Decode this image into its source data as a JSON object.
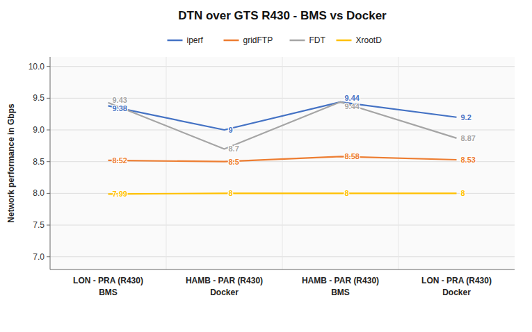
{
  "chart_data": {
    "type": "line",
    "title": "DTN over GTS R430 - BMS vs Docker",
    "ylabel": "Network performance in Gbps",
    "categories": [
      [
        "LON - PRA (R430)",
        "BMS"
      ],
      [
        "HAMB - PAR (R430)",
        "Docker"
      ],
      [
        "HAMB - PAR (R430)",
        "BMS"
      ],
      [
        "LON - PRA (R430)",
        "Docker"
      ]
    ],
    "series": [
      {
        "name": "iperf",
        "color": "#4472C4",
        "values": [
          9.38,
          9.0,
          9.44,
          9.2
        ]
      },
      {
        "name": "gridFTP",
        "color": "#ED7D31",
        "values": [
          8.52,
          8.5,
          8.58,
          8.53
        ]
      },
      {
        "name": "FDT",
        "color": "#A5A5A5",
        "values": [
          9.43,
          8.7,
          9.44,
          8.87
        ]
      },
      {
        "name": "XrootD",
        "color": "#FFC000",
        "values": [
          7.99,
          8.0,
          8.0,
          8.0
        ]
      }
    ],
    "ylim": [
      6.8,
      10.15
    ],
    "yticks": [
      {
        "value": 7,
        "label": "7.0"
      },
      7.5,
      {
        "value": 8,
        "label": "8.0"
      },
      8.5,
      {
        "value": 9,
        "label": "9.0"
      },
      9.5,
      {
        "value": 10,
        "label": "10.0"
      }
    ],
    "grid": true,
    "legend": "top",
    "data_labels": true
  }
}
